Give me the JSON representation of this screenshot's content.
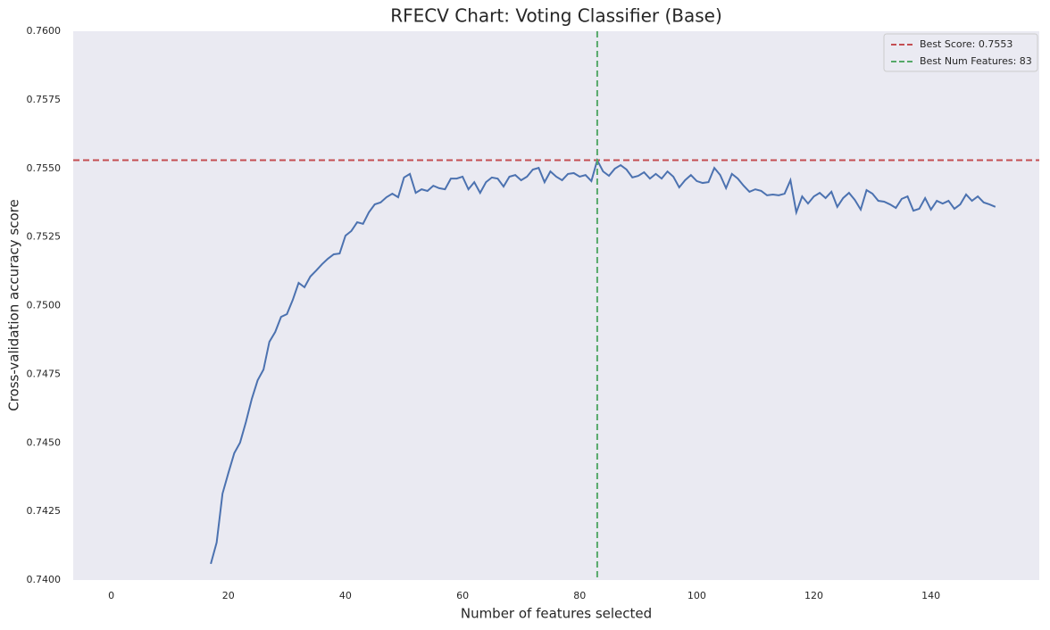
{
  "chart_data": {
    "type": "line",
    "title": "RFECV Chart: Voting Classifier (Base)",
    "x_label": "Number of features selected",
    "y_label": "Cross-validation accuracy score",
    "x": [
      17,
      18,
      19,
      20,
      21,
      22,
      23,
      24,
      25,
      26,
      27,
      28,
      29,
      30,
      31,
      32,
      33,
      34,
      35,
      36,
      37,
      38,
      39,
      40,
      41,
      42,
      43,
      44,
      45,
      46,
      47,
      48,
      49,
      50,
      51,
      52,
      53,
      54,
      55,
      56,
      57,
      58,
      59,
      60,
      61,
      62,
      63,
      64,
      65,
      66,
      67,
      68,
      69,
      70,
      71,
      72,
      73,
      74,
      75,
      76,
      77,
      78,
      79,
      80,
      81,
      82,
      83,
      84,
      85,
      86,
      87,
      88,
      89,
      90,
      91,
      92,
      93,
      94,
      95,
      96,
      97,
      98,
      99,
      100,
      101,
      102,
      103,
      104,
      105,
      106,
      107,
      108,
      109,
      110,
      111,
      112,
      113,
      114,
      115,
      116,
      117,
      118,
      119,
      120,
      121,
      122,
      123,
      124,
      125,
      126,
      127,
      128,
      129,
      130,
      131,
      132,
      133,
      134,
      135,
      136,
      137,
      138,
      139,
      140,
      141,
      142,
      143,
      144,
      145,
      146,
      147,
      148,
      149,
      150,
      151
    ],
    "series": [
      {
        "color": "#4c72b0",
        "values": [
          0.74059,
          0.74137,
          0.74315,
          0.7439,
          0.74462,
          0.74501,
          0.74576,
          0.7466,
          0.74728,
          0.74767,
          0.74868,
          0.74904,
          0.74959,
          0.74969,
          0.75021,
          0.75083,
          0.75067,
          0.75106,
          0.75128,
          0.75151,
          0.75171,
          0.75187,
          0.7519,
          0.75255,
          0.75272,
          0.75304,
          0.75298,
          0.7534,
          0.75369,
          0.75376,
          0.75395,
          0.75408,
          0.75395,
          0.75467,
          0.7548,
          0.75411,
          0.75424,
          0.75418,
          0.75437,
          0.75428,
          0.75424,
          0.75463,
          0.75463,
          0.7547,
          0.75424,
          0.7545,
          0.75411,
          0.7545,
          0.75467,
          0.75463,
          0.75434,
          0.7547,
          0.75476,
          0.75457,
          0.7547,
          0.75496,
          0.75502,
          0.7545,
          0.75489,
          0.7547,
          0.75457,
          0.7548,
          0.75483,
          0.7547,
          0.75476,
          0.75454,
          0.7553,
          0.75489,
          0.75473,
          0.75499,
          0.75512,
          0.75496,
          0.75467,
          0.75473,
          0.75486,
          0.75463,
          0.7548,
          0.75463,
          0.75489,
          0.7547,
          0.75431,
          0.75457,
          0.75476,
          0.75454,
          0.75447,
          0.7545,
          0.75502,
          0.75476,
          0.75428,
          0.7548,
          0.75463,
          0.75437,
          0.75415,
          0.75424,
          0.75418,
          0.75402,
          0.75405,
          0.75402,
          0.75408,
          0.75457,
          0.7534,
          0.75398,
          0.75372,
          0.75398,
          0.75411,
          0.75392,
          0.75415,
          0.7536,
          0.75392,
          0.75411,
          0.75385,
          0.7535,
          0.75421,
          0.75408,
          0.75382,
          0.75379,
          0.75369,
          0.75356,
          0.75389,
          0.75398,
          0.75346,
          0.75353,
          0.75392,
          0.7535,
          0.75382,
          0.75372,
          0.75382,
          0.75353,
          0.75369,
          0.75405,
          0.75382,
          0.75398,
          0.75376,
          0.75369,
          0.7536
        ]
      }
    ],
    "reference_lines": [
      {
        "name": "Best Score: 0.7553",
        "axis": "y",
        "value": 0.7553,
        "color": "#c44e52"
      },
      {
        "name": "Best Num Features: 83",
        "axis": "x",
        "value": 83,
        "color": "#55a868"
      }
    ],
    "xlim": [
      -6.5,
      158.5
    ],
    "ylim": [
      0.74,
      0.76
    ],
    "xticks": [
      0,
      20,
      40,
      60,
      80,
      100,
      120,
      140
    ],
    "yticks": [
      {
        "value": 0.74,
        "label": "0.7400"
      },
      {
        "value": 0.7425,
        "label": "0.7425"
      },
      {
        "value": 0.745,
        "label": "0.7450"
      },
      {
        "value": 0.7475,
        "label": "0.7475"
      },
      {
        "value": 0.75,
        "label": "0.7500"
      },
      {
        "value": 0.7525,
        "label": "0.7525"
      },
      {
        "value": 0.755,
        "label": "0.7550"
      },
      {
        "value": 0.7575,
        "label": "0.7575"
      },
      {
        "value": 0.76,
        "label": "0.7600"
      }
    ],
    "grid": false,
    "legend": "upper right",
    "background": "#eaeaf2"
  }
}
